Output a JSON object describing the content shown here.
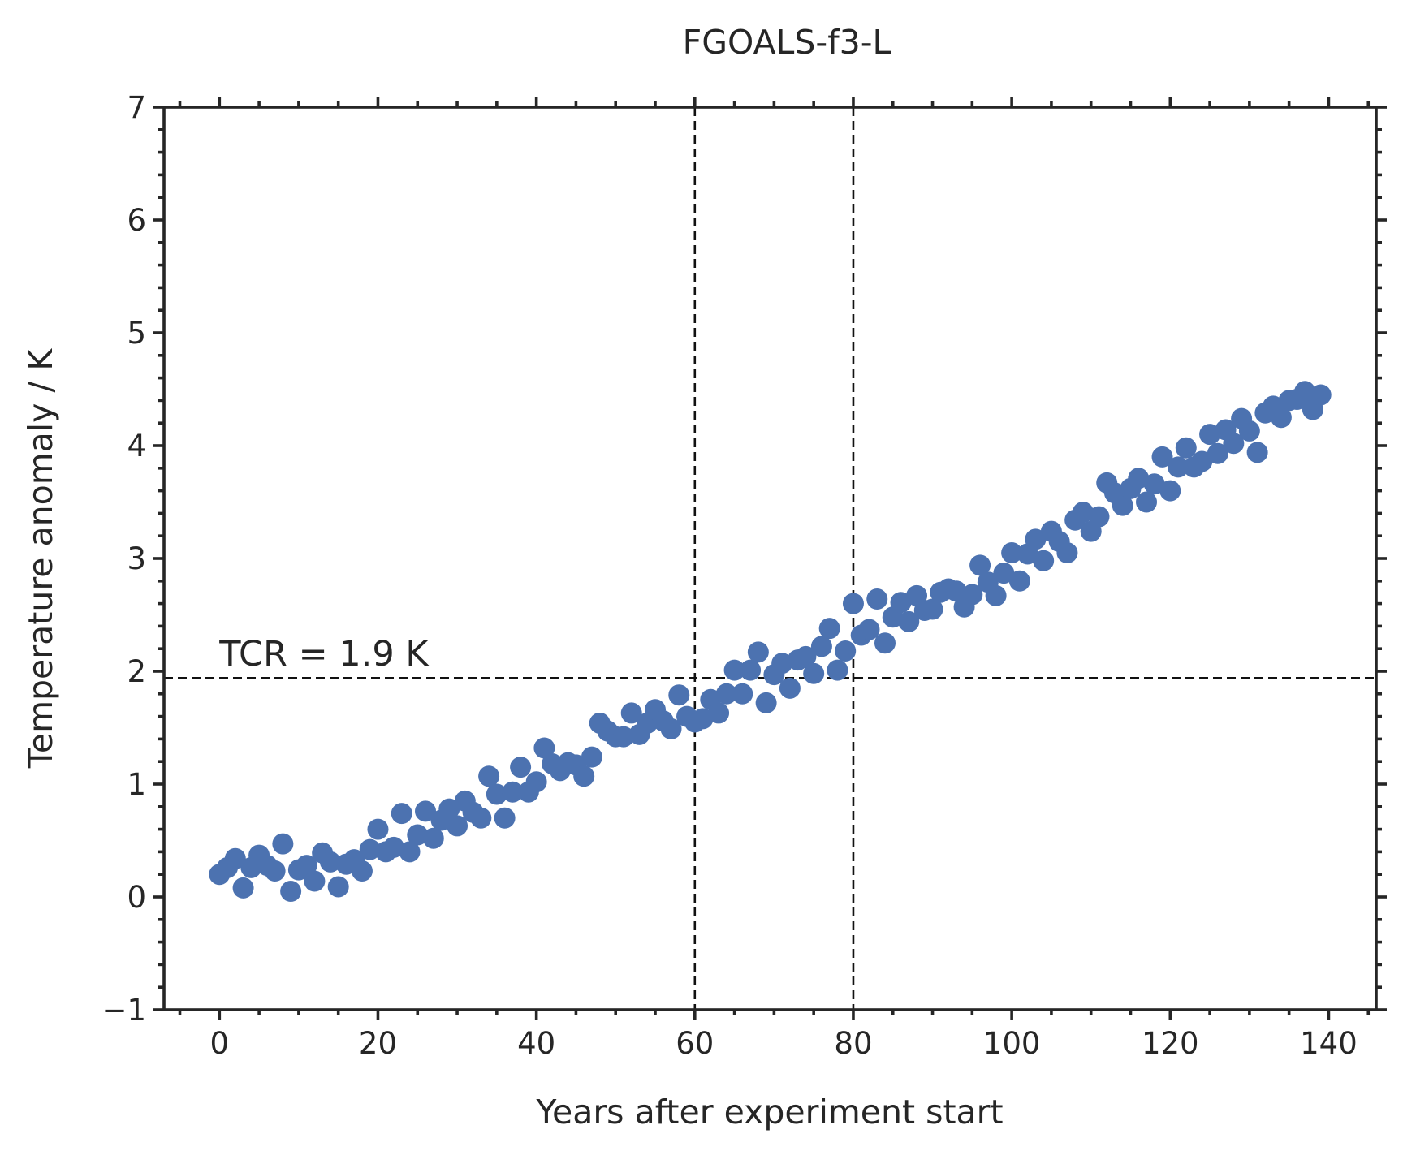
{
  "chart_data": {
    "type": "scatter",
    "title": "FGOALS-f3-L",
    "xlabel": "Years after experiment start",
    "ylabel": "Temperature anomaly / K",
    "xlim": [
      -7,
      146
    ],
    "ylim": [
      -1,
      7
    ],
    "xticks": [
      0,
      20,
      40,
      60,
      80,
      100,
      120,
      140
    ],
    "yticks": [
      -1,
      0,
      1,
      2,
      3,
      4,
      5,
      6,
      7
    ],
    "xtick_labels": [
      "0",
      "20",
      "40",
      "60",
      "80",
      "100",
      "120",
      "140"
    ],
    "ytick_labels": [
      "−1",
      "0",
      "1",
      "2",
      "3",
      "4",
      "5",
      "6",
      "7"
    ],
    "x_minor_step": 5,
    "y_minor_step": 0.2,
    "grid": false,
    "marker_color": "#4C72B0",
    "reference_lines": {
      "horizontal_y": 1.94,
      "vertical_x": [
        60,
        80
      ]
    },
    "annotation": {
      "text": "TCR = 1.9 K",
      "x": 0,
      "y": 2.05
    },
    "x": [
      0,
      1,
      2,
      3,
      4,
      5,
      6,
      7,
      8,
      9,
      10,
      11,
      12,
      13,
      14,
      15,
      16,
      17,
      18,
      19,
      20,
      21,
      22,
      23,
      24,
      25,
      26,
      27,
      28,
      29,
      30,
      31,
      32,
      33,
      34,
      35,
      36,
      37,
      38,
      39,
      40,
      41,
      42,
      43,
      44,
      45,
      46,
      47,
      48,
      49,
      50,
      51,
      52,
      53,
      54,
      55,
      56,
      57,
      58,
      59,
      60,
      61,
      62,
      63,
      64,
      65,
      66,
      67,
      68,
      69,
      70,
      71,
      72,
      73,
      74,
      75,
      76,
      77,
      78,
      79,
      80,
      81,
      82,
      83,
      84,
      85,
      86,
      87,
      88,
      89,
      90,
      91,
      92,
      93,
      94,
      95,
      96,
      97,
      98,
      99,
      100,
      101,
      102,
      103,
      104,
      105,
      106,
      107,
      108,
      109,
      110,
      111,
      112,
      113,
      114,
      115,
      116,
      117,
      118,
      119,
      120,
      121,
      122,
      123,
      124,
      125,
      126,
      127,
      128,
      129,
      130,
      131,
      132,
      133,
      134,
      135,
      136,
      137,
      138,
      139
    ],
    "y": [
      0.2,
      0.26,
      0.34,
      0.08,
      0.26,
      0.37,
      0.28,
      0.23,
      0.47,
      0.05,
      0.24,
      0.28,
      0.14,
      0.39,
      0.31,
      0.09,
      0.29,
      0.33,
      0.23,
      0.42,
      0.6,
      0.4,
      0.44,
      0.74,
      0.4,
      0.55,
      0.76,
      0.52,
      0.68,
      0.78,
      0.63,
      0.85,
      0.75,
      0.7,
      1.07,
      0.91,
      0.7,
      0.93,
      1.15,
      0.93,
      1.02,
      1.32,
      1.18,
      1.12,
      1.19,
      1.17,
      1.07,
      1.24,
      1.54,
      1.47,
      1.42,
      1.42,
      1.63,
      1.44,
      1.54,
      1.66,
      1.56,
      1.49,
      1.79,
      1.6,
      1.55,
      1.58,
      1.75,
      1.63,
      1.8,
      2.01,
      1.8,
      2.01,
      2.17,
      1.72,
      1.97,
      2.07,
      1.85,
      2.1,
      2.13,
      1.98,
      2.22,
      2.38,
      2.01,
      2.18,
      2.6,
      2.32,
      2.37,
      2.64,
      2.25,
      2.48,
      2.61,
      2.44,
      2.67,
      2.54,
      2.55,
      2.7,
      2.73,
      2.71,
      2.57,
      2.68,
      2.94,
      2.79,
      2.67,
      2.87,
      3.05,
      2.8,
      3.04,
      3.17,
      2.98,
      3.24,
      3.15,
      3.05,
      3.34,
      3.41,
      3.24,
      3.37,
      3.67,
      3.58,
      3.47,
      3.62,
      3.71,
      3.5,
      3.66,
      3.9,
      3.6,
      3.81,
      3.98,
      3.81,
      3.86,
      4.1,
      3.93,
      4.14,
      4.02,
      4.24,
      4.13,
      3.94,
      4.29,
      4.35,
      4.25,
      4.4,
      4.41,
      4.48,
      4.32,
      4.45
    ]
  }
}
